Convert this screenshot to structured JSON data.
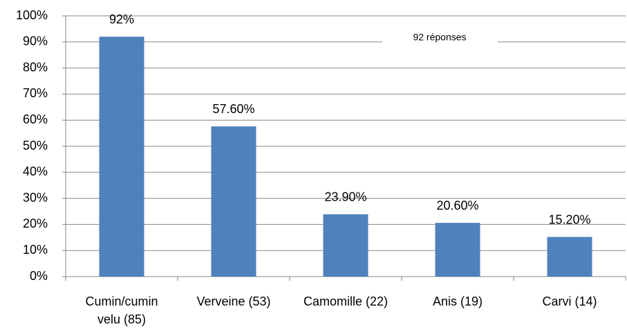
{
  "chart_data": {
    "type": "bar",
    "categories": [
      "Cumin/cumin velu (85)",
      "Verveine (53)",
      "Camomille (22)",
      "Anis (19)",
      "Carvi (14)"
    ],
    "values": [
      92,
      57.6,
      23.9,
      20.6,
      15.2
    ],
    "value_labels": [
      "92%",
      "57.60%",
      "23.90%",
      "20.60%",
      "15.20%"
    ],
    "color": "#4f81bd",
    "annotation": "92 réponses",
    "ylim": [
      0,
      100
    ],
    "yticks": [
      {
        "value": 0,
        "label": "0%"
      },
      {
        "value": 10,
        "label": "10%"
      },
      {
        "value": 20,
        "label": "20%"
      },
      {
        "value": 30,
        "label": "30%"
      },
      {
        "value": 40,
        "label": "40%"
      },
      {
        "value": 50,
        "label": "50%"
      },
      {
        "value": 60,
        "label": "60%"
      },
      {
        "value": 70,
        "label": "70%"
      },
      {
        "value": 80,
        "label": "80%"
      },
      {
        "value": 90,
        "label": "90%"
      },
      {
        "value": 100,
        "label": "100%"
      }
    ],
    "grid": true
  }
}
